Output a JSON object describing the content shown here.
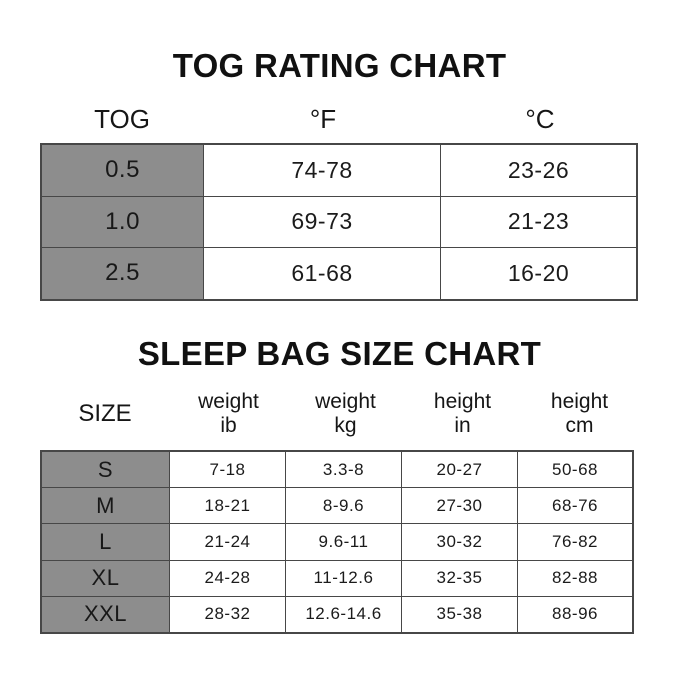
{
  "colors": {
    "background": "#ffffff",
    "row_label_gray": "#8d8d8d",
    "border_dark": "#474747",
    "text": "#1b1b1b"
  },
  "chart_data": [
    {
      "type": "table",
      "title": "TOG RATING CHART",
      "columns": [
        "TOG",
        "°F",
        "°C"
      ],
      "rows": [
        [
          "0.5",
          "74-78",
          "23-26"
        ],
        [
          "1.0",
          "69-73",
          "21-23"
        ],
        [
          "2.5",
          "61-68",
          "16-20"
        ]
      ],
      "layout": "first column gray label cells, headers unbordered above table"
    },
    {
      "type": "table",
      "title": "SLEEP BAG SIZE CHART",
      "columns": [
        "SIZE",
        "weight ib",
        "weight kg",
        "height in",
        "height cm"
      ],
      "header_lines": [
        [
          "SIZE"
        ],
        [
          "weight",
          "ib"
        ],
        [
          "weight",
          "kg"
        ],
        [
          "height",
          "in"
        ],
        [
          "height",
          "cm"
        ]
      ],
      "rows": [
        [
          "S",
          "7-18",
          "3.3-8",
          "20-27",
          "50-68"
        ],
        [
          "M",
          "18-21",
          "8-9.6",
          "27-30",
          "68-76"
        ],
        [
          "L",
          "21-24",
          "9.6-11",
          "30-32",
          "76-82"
        ],
        [
          "XL",
          "24-28",
          "11-12.6",
          "32-35",
          "82-88"
        ],
        [
          "XXL",
          "28-32",
          "12.6-14.6",
          "35-38",
          "88-96"
        ]
      ],
      "layout": "first column gray label cells, two-line headers unbordered above table"
    }
  ]
}
